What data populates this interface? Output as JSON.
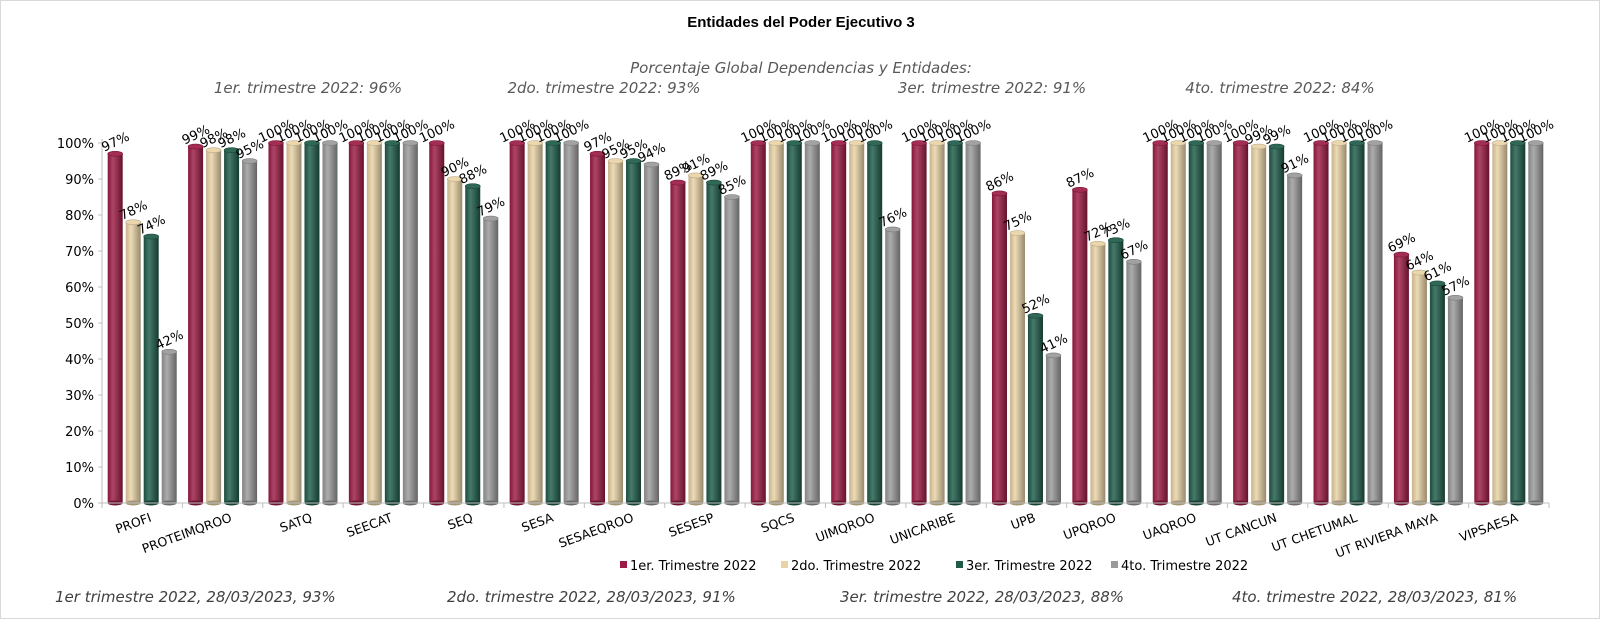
{
  "chart_data": {
    "type": "bar",
    "title": "Entidades del Poder Ejecutivo 3",
    "subtitle": "Porcentaje Global  Dependencias y Entidades:",
    "notes": [
      "1er. trimestre 2022: 96%",
      "2do. trimestre 2022: 93%",
      "3er. trimestre 2022: 91%",
      "4to. trimestre 2022: 84%"
    ],
    "footer": [
      "1er trimestre  2022,  28/03/2023, 93%",
      "2do. trimestre 2022, 28/03/2023, 91%",
      "3er. trimestre 2022, 28/03/2023, 88%",
      "4to. trimestre 2022, 28/03/2023, 81%"
    ],
    "categories": [
      "PROFI",
      "PROTEIMQROO",
      "SATQ",
      "SEECAT",
      "SEQ",
      "SESA",
      "SESAEQROO",
      "SESESP",
      "SQCS",
      "UIMQROO",
      "UNICARIBE",
      "UPB",
      "UPQROO",
      "UAQROO",
      "UT CANCUN",
      "UT CHETUMAL",
      "UT RIVIERA MAYA",
      "VIPSAESA"
    ],
    "series": [
      {
        "name": "1er. Trimestre 2022",
        "color": "#9b1b44",
        "values": [
          97,
          99,
          100,
          100,
          100,
          100,
          97,
          89,
          100,
          100,
          100,
          86,
          87,
          100,
          100,
          100,
          69,
          100
        ]
      },
      {
        "name": "2do. Trimestre 2022",
        "color": "#e9d3a6",
        "values": [
          78,
          98,
          100,
          100,
          90,
          100,
          95,
          91,
          100,
          100,
          100,
          75,
          72,
          100,
          99,
          100,
          64,
          100
        ]
      },
      {
        "name": "3er. Trimestre 2022",
        "color": "#1e5b49",
        "values": [
          74,
          98,
          100,
          100,
          88,
          100,
          95,
          89,
          100,
          100,
          100,
          52,
          73,
          100,
          99,
          100,
          61,
          100
        ]
      },
      {
        "name": "4to. Trimestre 2022",
        "color": "#9a9a9a",
        "values": [
          42,
          95,
          100,
          100,
          79,
          100,
          94,
          85,
          100,
          76,
          100,
          41,
          67,
          100,
          91,
          100,
          57,
          100
        ]
      }
    ],
    "ylim": [
      0,
      100
    ],
    "yticks": [
      "0%",
      "10%",
      "20%",
      "30%",
      "40%",
      "50%",
      "60%",
      "70%",
      "80%",
      "90%",
      "100%"
    ],
    "value_suffix": "%",
    "legend_position": "bottom",
    "grid": false
  }
}
